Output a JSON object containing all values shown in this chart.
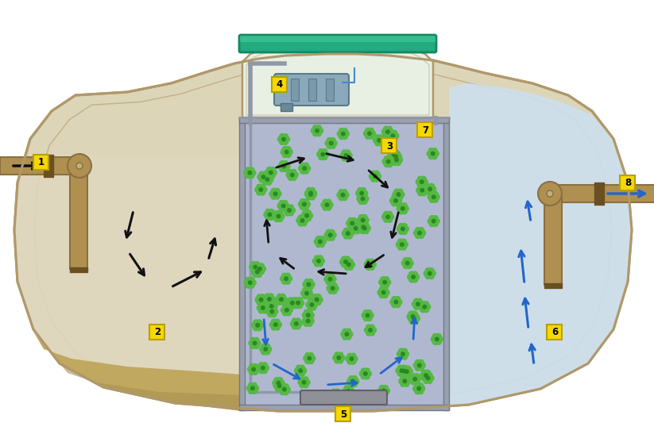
{
  "fig_width": 8.23,
  "fig_height": 5.52,
  "dpi": 100,
  "bg_color": "#ffffff",
  "tank_fill_color": "#ddd5b8",
  "tank_border_color": "#b0986a",
  "tank_inner_color": "#ccc4a8",
  "sediment_color": "#c0a860",
  "sediment_dark": "#a89050",
  "water_dirty_color": "#e0d8be",
  "water_clean_color": "#cce0f0",
  "bio_zone_color": "#b0b8d0",
  "green_media_color": "#55b844",
  "green_media_dark": "#2a8822",
  "pipe_color": "#b09050",
  "pipe_mid": "#8a7040",
  "pipe_dark": "#6a5020",
  "label_bg": "#f5d800",
  "arrow_black": "#111111",
  "arrow_blue": "#2266cc",
  "top_chamber_color": "#e8f0e4",
  "top_cover_color": "#22aa80",
  "top_cover_dark": "#118860",
  "air_pump_color": "#8aaabb",
  "air_pump_dark": "#5a7a8a",
  "diffuser_color": "#909098",
  "frame_color": "#9aa0b0",
  "frame_dark": "#707888"
}
